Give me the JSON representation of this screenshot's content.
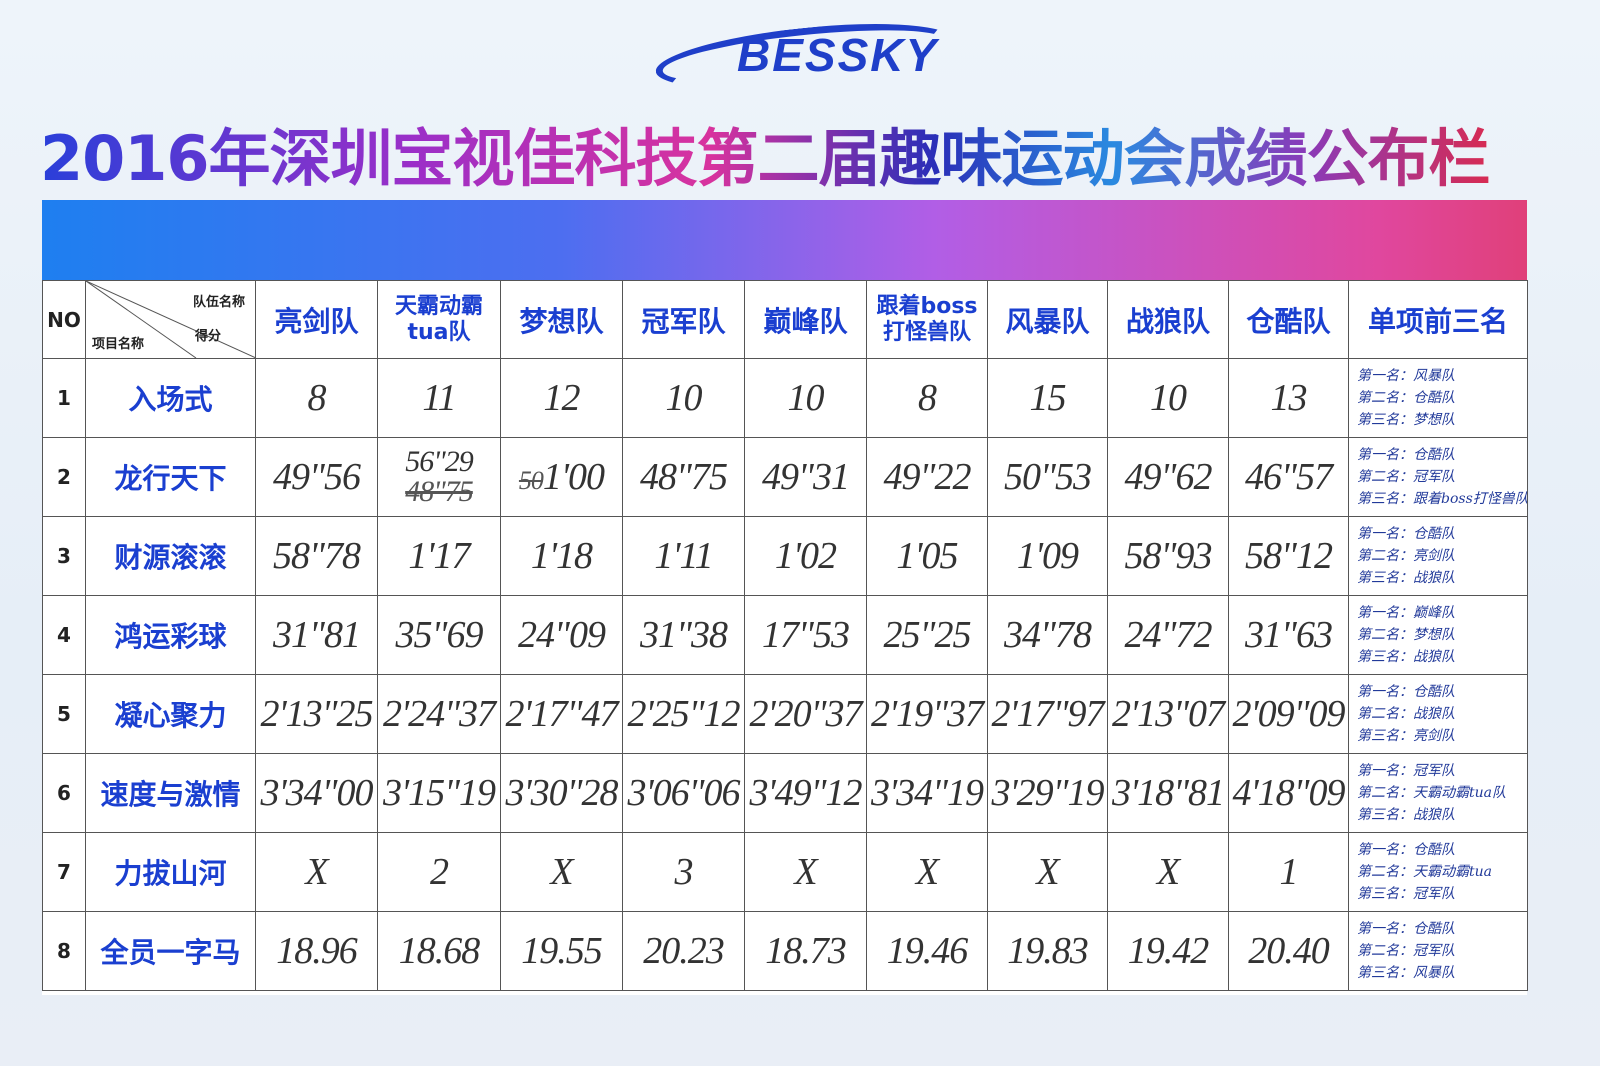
{
  "logo": "BESSKY",
  "title": "2016年深圳宝视佳科技第二届趣味运动会成绩公布栏",
  "header": {
    "no": "NO",
    "team_label": "队伍名称",
    "event_label": "项目名称",
    "score_label": "得分",
    "teams": [
      "亮剑队",
      "天霸动霸tua队",
      "梦想队",
      "冠军队",
      "巅峰队",
      "跟着boss打怪兽队",
      "风暴队",
      "战狼队",
      "仓酷队"
    ],
    "top3": "单项前三名"
  },
  "rows": [
    {
      "no": "1",
      "event": "入场式",
      "scores": [
        "8",
        "11",
        "12",
        "10",
        "10",
        "8",
        "15",
        "10",
        "13"
      ],
      "top3": [
        "第一名：风暴队",
        "第二名：仓酷队",
        "第三名：梦想队"
      ]
    },
    {
      "no": "2",
      "event": "龙行天下",
      "scores": [
        "49\"56",
        "56\"29",
        "1'00",
        "48\"75",
        "49\"31",
        "49\"22",
        "50\"53",
        "49\"62",
        "46\"57"
      ],
      "struck": {
        "team2": "48\"75",
        "team3": "50"
      },
      "top3": [
        "第一名：仓酷队",
        "第二名：冠军队",
        "第三名：跟着boss打怪兽队"
      ]
    },
    {
      "no": "3",
      "event": "财源滚滚",
      "scores": [
        "58\"78",
        "1'17",
        "1'18",
        "1'11",
        "1'02",
        "1'05",
        "1'09",
        "58\"93",
        "58\"12"
      ],
      "top3": [
        "第一名：仓酷队",
        "第二名：亮剑队",
        "第三名：战狼队"
      ]
    },
    {
      "no": "4",
      "event": "鸿运彩球",
      "scores": [
        "31\"81",
        "35\"69",
        "24\"09",
        "31\"38",
        "17\"53",
        "25\"25",
        "34\"78",
        "24\"72",
        "31\"63"
      ],
      "top3": [
        "第一名：巅峰队",
        "第二名：梦想队",
        "第三名：战狼队"
      ]
    },
    {
      "no": "5",
      "event": "凝心聚力",
      "scores": [
        "2'13\"25",
        "2'24\"37",
        "2'17\"47",
        "2'25\"12",
        "2'20\"37",
        "2'19\"37",
        "2'17\"97",
        "2'13\"07",
        "2'09\"09"
      ],
      "top3": [
        "第一名：仓酷队",
        "第二名：战狼队",
        "第三名：亮剑队"
      ]
    },
    {
      "no": "6",
      "event": "速度与激情",
      "scores": [
        "3'34\"00",
        "3'15\"19",
        "3'30\"28",
        "3'06\"06",
        "3'49\"12",
        "3'34\"19",
        "3'29\"19",
        "3'18\"81",
        "4'18\"09"
      ],
      "top3": [
        "第一名：冠军队",
        "第二名：天霸动霸tua队",
        "第三名：战狼队"
      ]
    },
    {
      "no": "7",
      "event": "力拔山河",
      "scores": [
        "X",
        "2",
        "X",
        "3",
        "X",
        "X",
        "X",
        "X",
        "1"
      ],
      "top3": [
        "第一名：仓酷队",
        "第二名：天霸动霸tua",
        "第三名：冠军队"
      ]
    },
    {
      "no": "8",
      "event": "全员一字马",
      "scores": [
        "18.96",
        "18.68",
        "19.55",
        "20.23",
        "18.73",
        "19.46",
        "19.83",
        "19.42",
        "20.40"
      ],
      "top3": [
        "第一名：仓酷队",
        "第二名：冠军队",
        "第三名：风暴队"
      ]
    }
  ]
}
